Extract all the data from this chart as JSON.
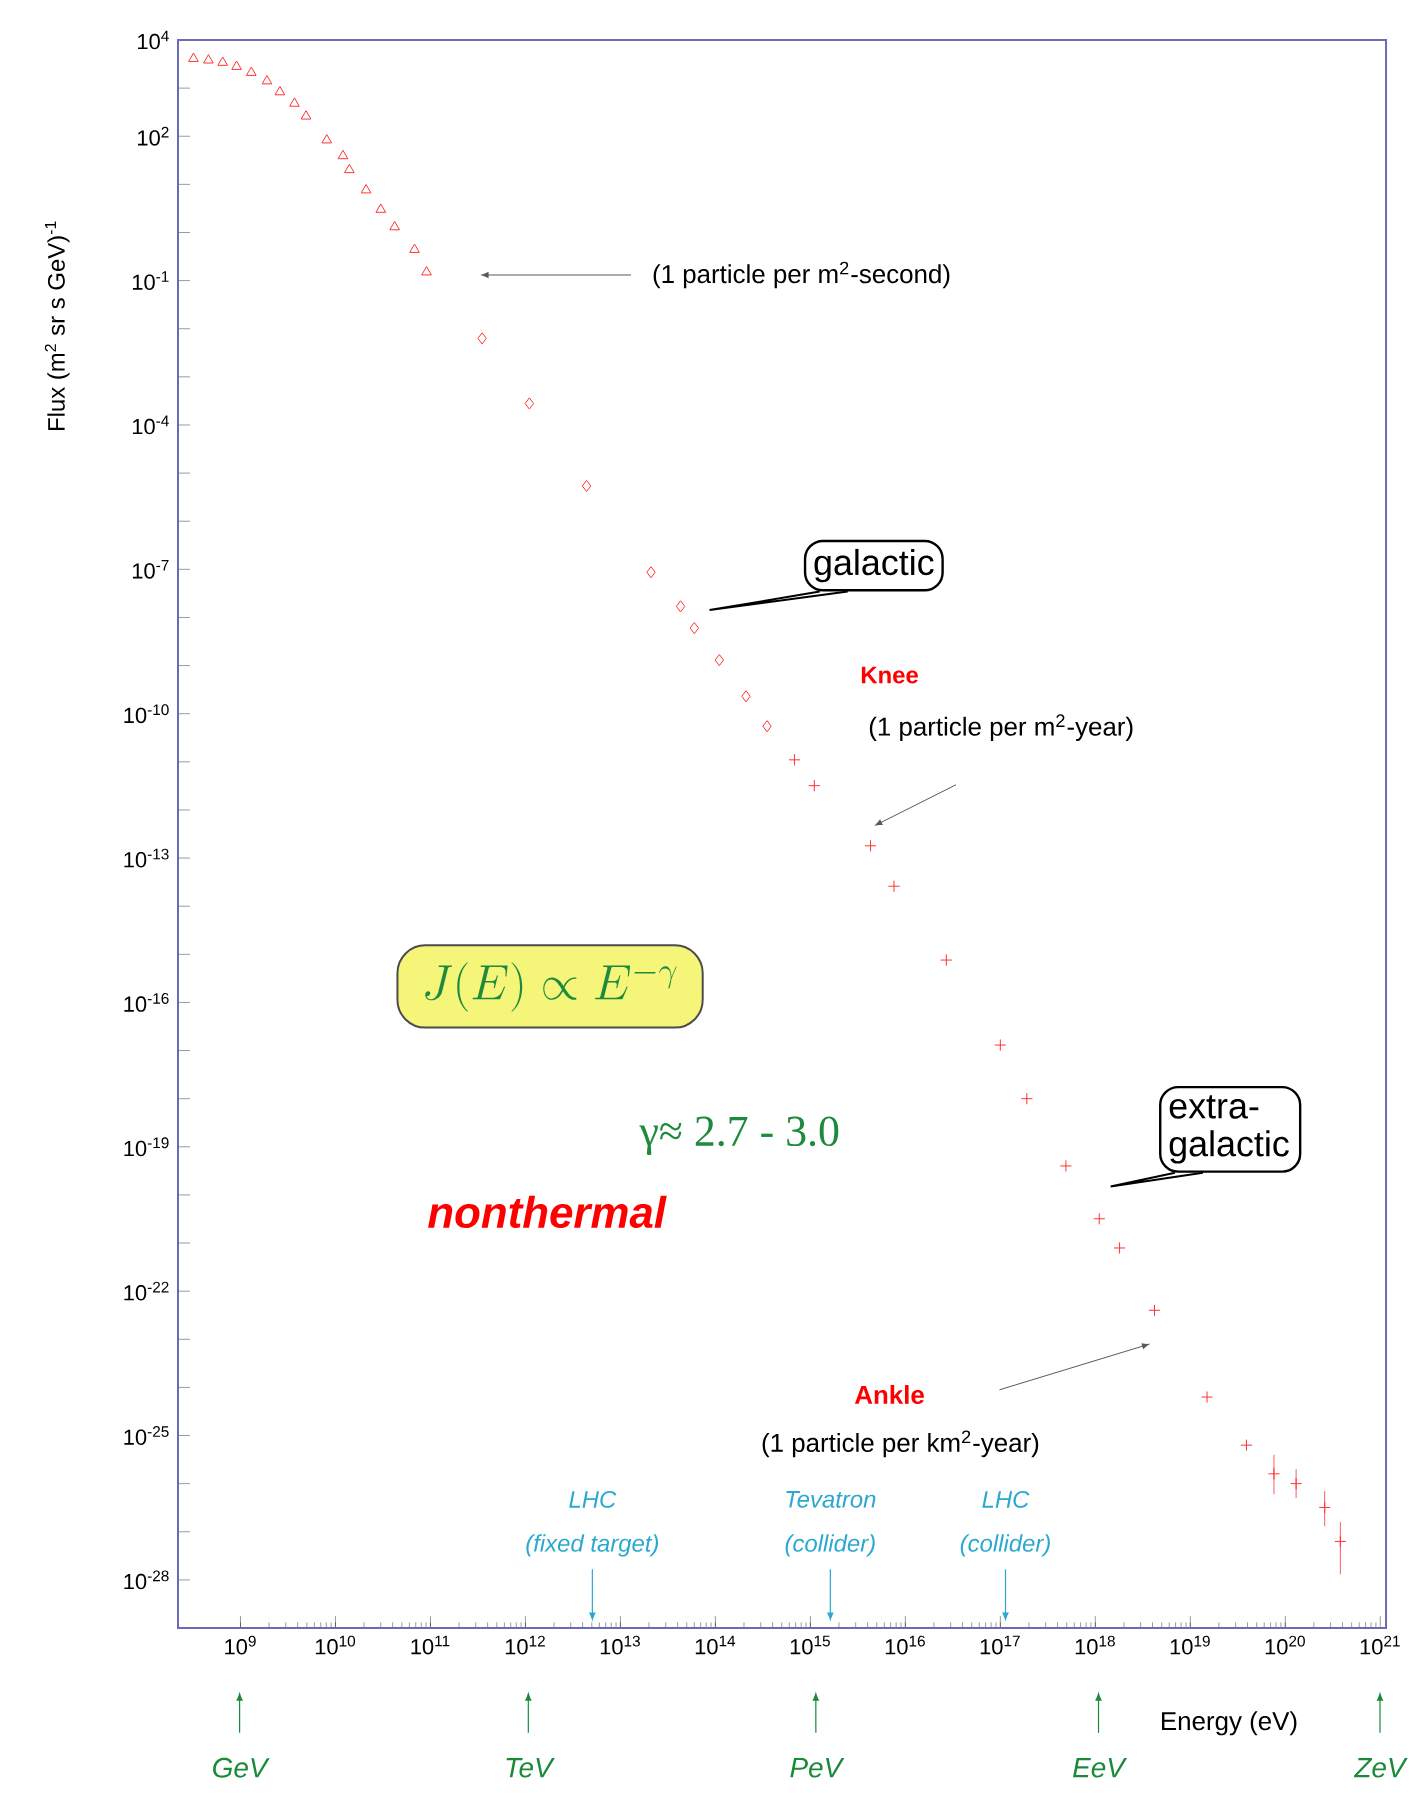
{
  "chart_data": {
    "type": "scatter",
    "xlabel": "Energy (eV)",
    "ylabel": "Flux (m$^{2}$ sr s GeV)$^{-1}$",
    "log": "xy",
    "xlim": [
      220000000.0,
      1.15e+21
    ],
    "ylim": [
      1e-29,
      10000.0
    ],
    "xticks": [
      {
        "value": 1000000000.0,
        "label": "10$^{9}$"
      },
      {
        "value": 10000000000.0,
        "label": "10$^{10}$"
      },
      {
        "value": 100000000000.0,
        "label": "10$^{11}$"
      },
      {
        "value": 1000000000000.0,
        "label": "10$^{12}$"
      },
      {
        "value": 10000000000000.0,
        "label": "10$^{13}$"
      },
      {
        "value": 100000000000000.0,
        "label": "10$^{14}$"
      },
      {
        "value": 1000000000000000.0,
        "label": "10$^{15}$"
      },
      {
        "value": 1e+16,
        "label": "10$^{16}$"
      },
      {
        "value": 1e+17,
        "label": "10$^{17}$"
      },
      {
        "value": 1e+18,
        "label": "10$^{18}$"
      },
      {
        "value": 1e+19,
        "label": "10$^{19}$"
      },
      {
        "value": 1e+20,
        "label": "10$^{20}$"
      },
      {
        "value": 1e+21,
        "label": "10$^{21}$"
      }
    ],
    "yticks": [
      {
        "value": 10000.0,
        "label": "10$^{4}$"
      },
      {
        "value": 1000.0,
        "label": null
      },
      {
        "value": 100.0,
        "label": "10$^{2}$"
      },
      {
        "value": 10.0,
        "label": null
      },
      {
        "value": 1,
        "label": null
      },
      {
        "value": 0.1,
        "label": "10$^{-1}$"
      },
      {
        "value": 0.01,
        "label": null
      },
      {
        "value": 0.001,
        "label": null
      },
      {
        "value": 0.0001,
        "label": "10$^{-4}$"
      },
      {
        "value": 1e-05,
        "label": null
      },
      {
        "value": 1e-06,
        "label": null
      },
      {
        "value": 1e-07,
        "label": "10$^{-7}$"
      },
      {
        "value": 1e-08,
        "label": null
      },
      {
        "value": 1e-09,
        "label": null
      },
      {
        "value": 1e-10,
        "label": "10$^{-10}$"
      },
      {
        "value": 1e-11,
        "label": null
      },
      {
        "value": 1e-12,
        "label": null
      },
      {
        "value": 1e-13,
        "label": "10$^{-13}$"
      },
      {
        "value": 1e-14,
        "label": null
      },
      {
        "value": 1e-15,
        "label": null
      },
      {
        "value": 1e-16,
        "label": "10$^{-16}$"
      },
      {
        "value": 1e-17,
        "label": null
      },
      {
        "value": 1e-18,
        "label": null
      },
      {
        "value": 1e-19,
        "label": "10$^{-19}$"
      },
      {
        "value": 1e-20,
        "label": null
      },
      {
        "value": 1e-21,
        "label": null
      },
      {
        "value": 1e-22,
        "label": "10$^{-22}$"
      },
      {
        "value": 1e-23,
        "label": null
      },
      {
        "value": 1e-24,
        "label": null
      },
      {
        "value": 1e-25,
        "label": "10$^{-25}$"
      },
      {
        "value": 1e-26,
        "label": null
      },
      {
        "value": 1e-27,
        "label": null
      },
      {
        "value": 1e-28,
        "label": "10$^{-28}$"
      }
    ],
    "series": [
      {
        "color": "#ff3333",
        "marker": "triangle",
        "x": [
          320000000.0,
          460000000.0,
          650000000.0,
          910000000.0,
          1300000000.0,
          1900000000.0,
          2600000000.0,
          3700000000.0,
          4900000000.0,
          8100000000.0,
          12000000000.0,
          14000000000.0,
          21000000000.0,
          30000000000.0,
          42000000000.0,
          68000000000.0,
          91000000000.0
        ],
        "values": [
          4100,
          3800,
          3400,
          2800,
          2100,
          1400,
          830,
          480,
          260,
          83,
          39,
          20,
          7.6,
          3.0,
          1.3,
          0.44,
          0.15
        ]
      },
      {
        "color": "#ff3333",
        "marker": "diamond",
        "x": [
          350000000000.0,
          1100000000000.0,
          4400000000000.0,
          21000000000000.0,
          43000000000000.0,
          60000000000000.0,
          110000000000000.0,
          210000000000000.0,
          350000000000000.0
        ],
        "values": [
          0.0063,
          0.00028,
          5.4e-06,
          8.7e-08,
          1.7e-08,
          6e-09,
          1.3e-09,
          2.3e-10,
          5.5e-11
        ]
      },
      {
        "color": "#ff3333",
        "marker": "cross",
        "x": [
          680000000000000.0,
          1100000000000000.0,
          4300000000000000.0,
          7600000000000000.0,
          2.7e+16,
          1e+17,
          1.9e+17,
          4.9e+17,
          1.1e+18,
          1.8e+18,
          4.2e+18,
          1.5e+19,
          3.9e+19,
          7.6e+19,
          1.3e+20,
          2.6e+20,
          3.8e+20
        ],
        "values": [
          1.1e-11,
          3.2e-12,
          1.8e-13,
          2.6e-14,
          7.6e-16,
          1.3e-17,
          1e-18,
          4e-20,
          3.2e-21,
          7.9e-22,
          4e-23,
          6.3e-25,
          6.3e-26,
          1.6e-26,
          1e-26,
          3.2e-27,
          6.3e-28
        ],
        "errors": [
          null,
          null,
          null,
          null,
          null,
          null,
          null,
          null,
          null,
          null,
          null,
          null,
          null,
          [
            6e-27,
            4e-26
          ],
          [
            5e-27,
            2e-26
          ],
          [
            1.3e-27,
            7e-27
          ],
          [
            1.3e-28,
            1.6e-27
          ]
        ]
      }
    ],
    "annotations": [
      "(1 particle per m$^{2}$-second)",
      "galactic",
      "Knee",
      "(1 particle per m$^{2}$-year)",
      "J(E) \\propto E^{-\\gamma}",
      "γ≈ 2.7 - 3.0",
      "nonthermal",
      "extra-galactic",
      "Ankle",
      "(1 particle per km$^{2}$-year)",
      "LHC",
      "(fixed target)",
      "Tevatron",
      "(collider)",
      "LHC",
      "(collider)",
      "GeV",
      "TeV",
      "PeV",
      "EeV",
      "ZeV"
    ]
  }
}
